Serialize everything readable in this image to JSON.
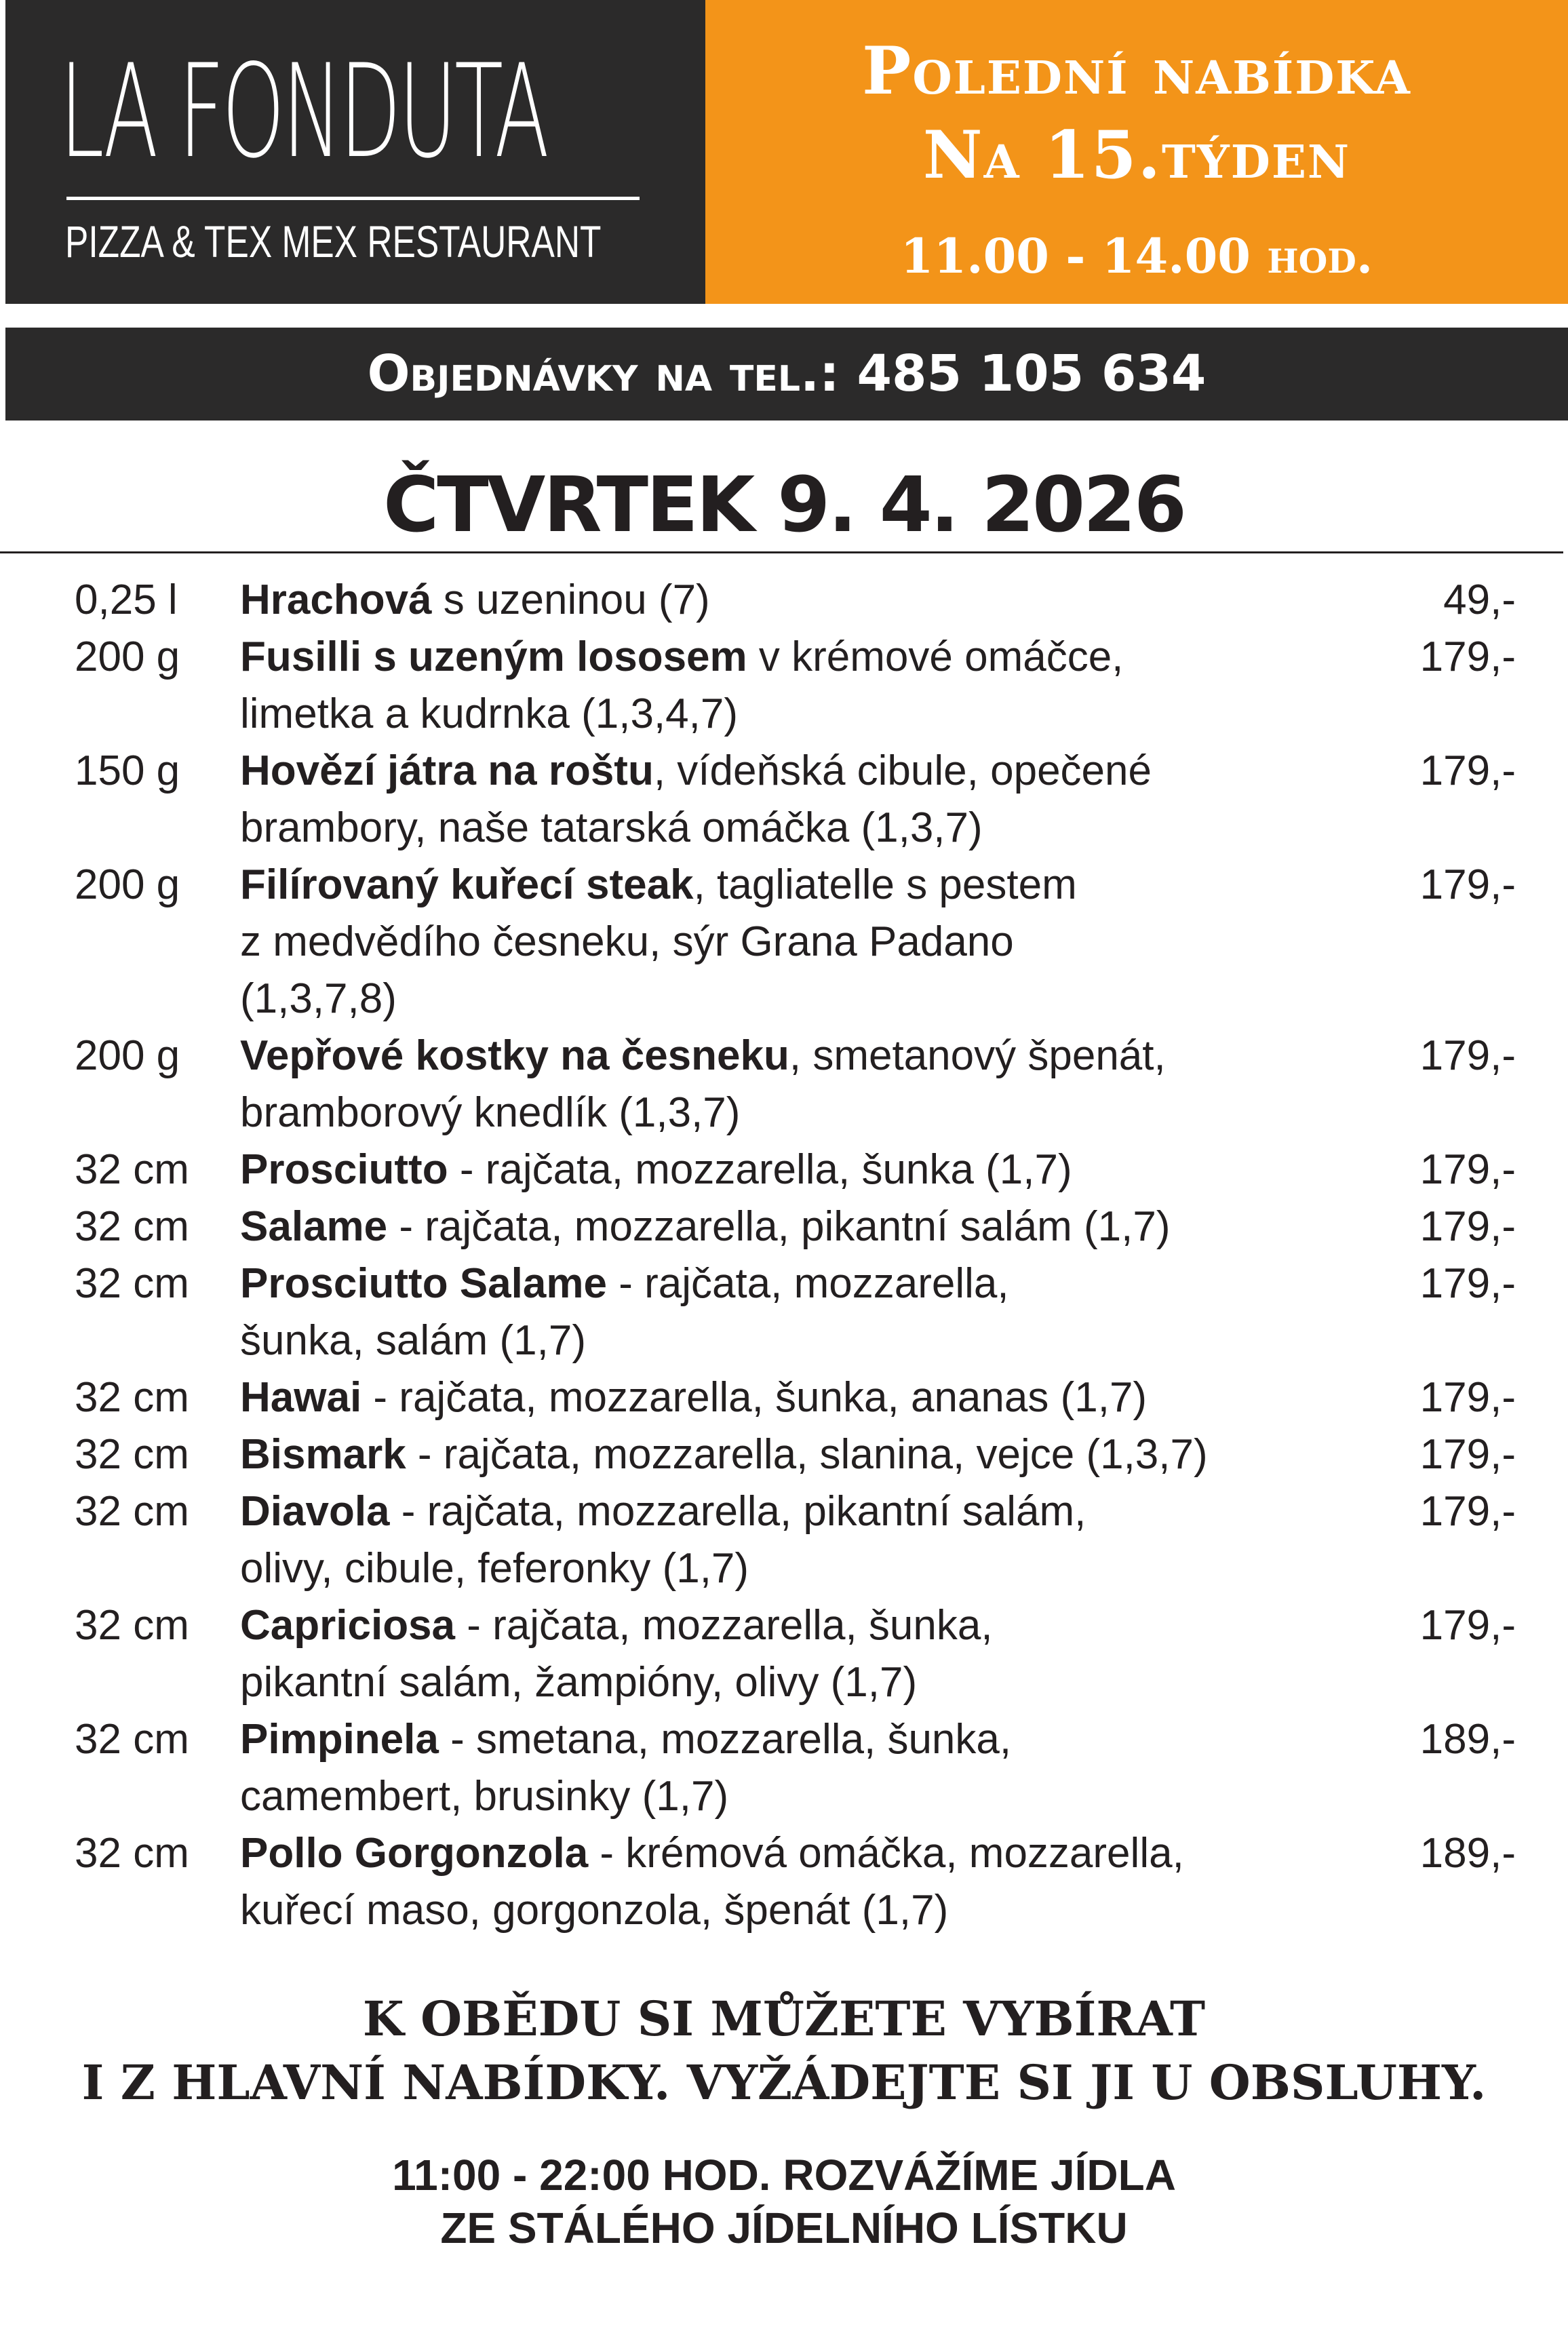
{
  "header": {
    "logo_name": "LA FONDUTA",
    "logo_subtitle": "PIZZA & TEX MEX  RESTAURANT",
    "offer_line1": "Polední nabídka",
    "offer_line2": "Na  15.týden",
    "offer_hours": "11.00 - 14.00 hod.",
    "order_text": "Objednávky na tel.: 485 105 634"
  },
  "colors": {
    "dark": "#2b2a2a",
    "orange": "#f39419"
  },
  "day_title": "ČTVRTEK 9. 4. 2026",
  "menu": [
    {
      "qty": "0,25 l",
      "name": "Hrachová",
      "rest": " s uzeninou  (7)",
      "more": [],
      "price": "49,-"
    },
    {
      "qty": "200 g",
      "name": "Fusilli s uzeným lososem",
      "rest": " v krémové omáčce,",
      "more": [
        "limetka a kudrnka (1,3,4,7)"
      ],
      "price": "179,-"
    },
    {
      "qty": "150 g",
      "name": "Hovězí játra na roštu",
      "rest": ", vídeňská cibule, opečené",
      "more": [
        "brambory, naše tatarská omáčka (1,3,7)"
      ],
      "price": "179,-"
    },
    {
      "qty": "200 g",
      "name": "Filírovaný kuřecí steak",
      "rest": ", tagliatelle s pestem",
      "more": [
        "z medvědího česneku, sýr Grana Padano",
        "(1,3,7,8)"
      ],
      "price": "179,-"
    },
    {
      "qty": "200 g",
      "name": "Vepřové kostky na česneku",
      "rest": ", smetanový špenát,",
      "more": [
        "bramborový knedlík (1,3,7)"
      ],
      "price": "179,-"
    },
    {
      "qty": "32 cm",
      "name": "Prosciutto",
      "rest": " - rajčata, mozzarella, šunka  (1,7)",
      "more": [],
      "price": "179,-"
    },
    {
      "qty": "32 cm",
      "name": "Salame",
      "rest": " - rajčata, mozzarella, pikantní salám (1,7)",
      "more": [],
      "price": "179,-"
    },
    {
      "qty": "32 cm",
      "name": "Prosciutto  Salame",
      "rest": " - rajčata, mozzarella,",
      "more": [
        "šunka, salám (1,7)"
      ],
      "price": "179,-"
    },
    {
      "qty": "32 cm",
      "name": "Hawai",
      "rest": " - rajčata, mozzarella, šunka, ananas (1,7)",
      "more": [],
      "price": "179,-"
    },
    {
      "qty": "32 cm",
      "name": "Bismark",
      "rest": " - rajčata, mozzarella, slanina, vejce (1,3,7)",
      "more": [],
      "price": "179,-"
    },
    {
      "qty": "32 cm",
      "name": "Diavola",
      "rest": " - rajčata, mozzarella, pikantní salám,",
      "more": [
        "olivy, cibule, feferonky (1,7)"
      ],
      "price": "179,-"
    },
    {
      "qty": "32 cm",
      "name": "Capriciosa",
      "rest": " - rajčata, mozzarella, šunka,",
      "more": [
        "pikantní salám, žampióny, olivy (1,7)"
      ],
      "price": "179,-"
    },
    {
      "qty": "32 cm",
      "name": "Pimpinela",
      "rest": " - smetana, mozzarella, šunka,",
      "more": [
        "camembert, brusinky (1,7)"
      ],
      "price": "189,-"
    },
    {
      "qty": "32 cm",
      "name": "Pollo Gorgonzola",
      "rest": " - krémová omáčka, mozzarella,",
      "more": [
        "kuřecí maso, gorgonzola, špenát (1,7)"
      ],
      "price": "189,-"
    }
  ],
  "footer": {
    "note_line1": "K OBĚDU SI MŮŽETE VYBÍRAT",
    "note_line2": "I Z HLAVNÍ NABÍDKY. VYŽÁDEJTE SI JI U OBSLUHY.",
    "delivery_line1": "11:00 - 22:00 HOD. ROZVÁŽÍME JÍDLA",
    "delivery_line2": "ZE STÁLÉHO JÍDELNÍHO LÍSTKU"
  }
}
